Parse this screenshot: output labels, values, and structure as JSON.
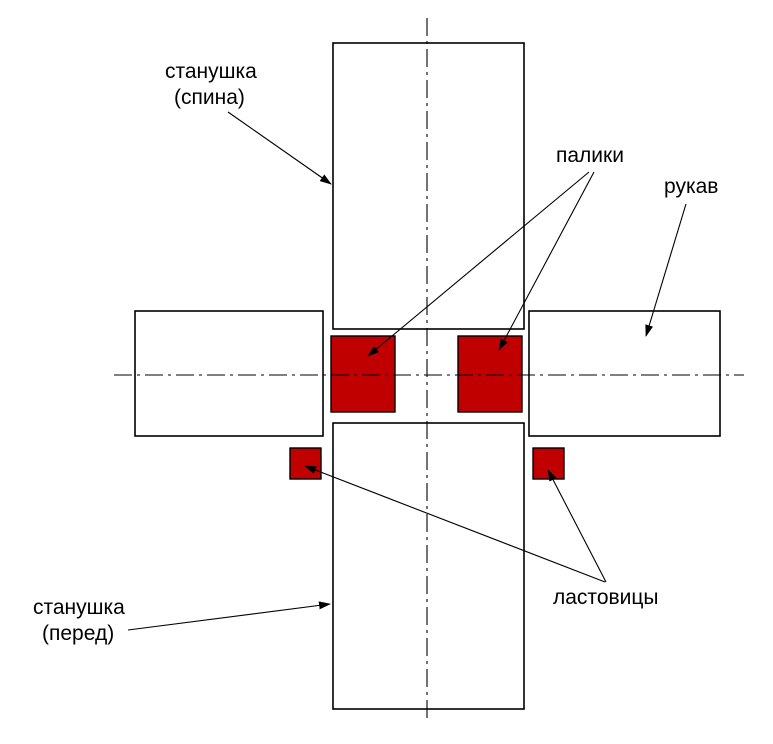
{
  "labels": {
    "back_body": [
      "станушка",
      "(спина)"
    ],
    "front_body": [
      "станушка",
      "(перед)"
    ],
    "sleeve": "рукав",
    "shoulder_pieces": "палики",
    "gussets": "ластовицы"
  },
  "colors": {
    "piece_fill": "#c00000",
    "outline": "#000000",
    "background": "#ffffff"
  }
}
